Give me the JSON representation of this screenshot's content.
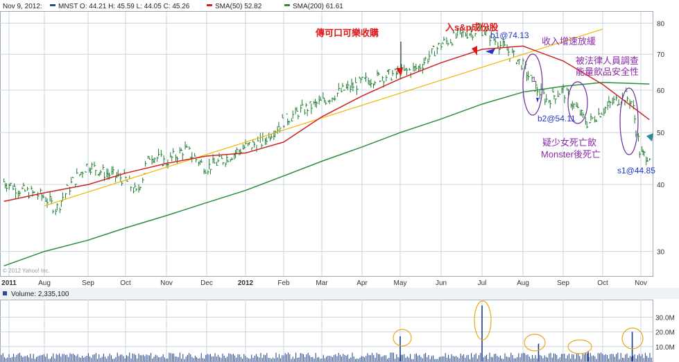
{
  "header": {
    "date": "Nov 9, 2012:",
    "ohlc": "MNST O: 44.21 H: 45.59 L: 44.05 C: 45.26",
    "sma50_label": "SMA(50) 52.82",
    "sma200_label": "SMA(200) 61.61"
  },
  "copyright": "© 2012 Yahoo! Inc.",
  "volume_label": "Volume: 2,335,100",
  "colors": {
    "price_bars": "#1a7a2c",
    "sma50": "#cc2222",
    "sma200": "#2e8b3c",
    "trendline": "#f0b400",
    "grid": "#c8d4e0",
    "annotation_red": "#e01818",
    "annotation_purple": "#8a2aa8",
    "annotation_blue": "#2233cc",
    "volume_bars": "#1a3a8a"
  },
  "chart_data": {
    "type": "line",
    "ticker": "MNST",
    "y_scale": "log",
    "ylim": [
      27,
      84
    ],
    "y_ticks": [
      30,
      40,
      50,
      60,
      70,
      80
    ],
    "x_tick_labels": [
      "2011",
      "Aug",
      "Sep",
      "Oct",
      "Nov",
      "Dec",
      "2012",
      "Feb",
      "Mar",
      "Apr",
      "May",
      "Jun",
      "Jul",
      "Aug",
      "Sep",
      "Oct",
      "Nov"
    ],
    "grid": true,
    "series": [
      {
        "name": "SMA(50)",
        "x": [
          "2011-07-01",
          "2011-08-01",
          "2011-09-01",
          "2011-10-01",
          "2011-11-01",
          "2011-12-01",
          "2012-01-01",
          "2012-02-01",
          "2012-03-01",
          "2012-04-01",
          "2012-05-01",
          "2012-06-01",
          "2012-07-01",
          "2012-08-01",
          "2012-09-01",
          "2012-10-01",
          "2012-11-09"
        ],
        "values": [
          37.2,
          38.6,
          40.0,
          42.0,
          43.8,
          45.2,
          45.8,
          48.0,
          53.5,
          58.5,
          63.0,
          67.5,
          71.5,
          72.5,
          68.0,
          61.5,
          52.82
        ]
      },
      {
        "name": "SMA(200)",
        "x": [
          "2011-07-01",
          "2011-08-01",
          "2011-09-01",
          "2011-10-01",
          "2011-11-01",
          "2011-12-01",
          "2012-01-01",
          "2012-02-01",
          "2012-03-01",
          "2012-04-01",
          "2012-05-01",
          "2012-06-01",
          "2012-07-01",
          "2012-08-01",
          "2012-09-01",
          "2012-10-01",
          "2012-11-09"
        ],
        "values": [
          28.2,
          30.0,
          31.5,
          33.2,
          35.0,
          37.0,
          39.0,
          41.5,
          44.2,
          47.0,
          50.0,
          53.0,
          56.5,
          59.5,
          61.0,
          62.0,
          61.61
        ]
      },
      {
        "name": "Trendline",
        "x": [
          "2011-08-01",
          "2012-10-01"
        ],
        "values": [
          36.5,
          78.0
        ]
      }
    ],
    "price": {
      "x": [
        "2011-07-01",
        "2011-07-15",
        "2011-08-01",
        "2011-08-10",
        "2011-08-20",
        "2011-09-01",
        "2011-09-15",
        "2011-10-01",
        "2011-10-10",
        "2011-10-20",
        "2011-11-01",
        "2011-11-15",
        "2011-12-01",
        "2011-12-15",
        "2012-01-01",
        "2012-01-15",
        "2012-02-01",
        "2012-02-15",
        "2012-03-01",
        "2012-03-15",
        "2012-04-01",
        "2012-04-15",
        "2012-05-01",
        "2012-05-15",
        "2012-06-01",
        "2012-06-15",
        "2012-07-01",
        "2012-07-15",
        "2012-08-01",
        "2012-08-10",
        "2012-08-20",
        "2012-09-01",
        "2012-09-10",
        "2012-09-20",
        "2012-10-01",
        "2012-10-10",
        "2012-10-20",
        "2012-10-25",
        "2012-11-01",
        "2012-11-09"
      ],
      "close": [
        40.5,
        39.0,
        38.0,
        36.0,
        40.0,
        43.5,
        42.0,
        41.0,
        38.5,
        45.5,
        44.0,
        46.5,
        43.0,
        44.5,
        47.0,
        48.0,
        52.5,
        55.0,
        57.0,
        59.5,
        62.0,
        63.5,
        64.5,
        66.0,
        73.0,
        76.0,
        78.0,
        73.0,
        67.0,
        61.0,
        57.5,
        60.0,
        56.0,
        52.0,
        55.0,
        57.0,
        58.5,
        57.0,
        45.5,
        45.26
      ]
    },
    "volume": {
      "unit": "M",
      "y_ticks": [
        10,
        20,
        30
      ],
      "y_tick_labels": [
        "10.0M",
        "20.0M",
        "30.0M"
      ],
      "spikes": [
        {
          "x": "2012-05-01",
          "value": 17
        },
        {
          "x": "2012-07-01",
          "value": 38
        },
        {
          "x": "2012-08-13",
          "value": 12
        },
        {
          "x": "2012-09-20",
          "value": 7
        },
        {
          "x": "2012-10-25",
          "value": 20
        }
      ]
    }
  },
  "annotations": {
    "coke_rumor": "傳可口可樂收購",
    "sp_join": "入s&p成份股",
    "b1": "b1@74.13",
    "income_slow": "收入增速放緩",
    "investigation_l1": "被法律人員調查",
    "investigation_l2": "能量飲品安全性",
    "b2": "b2@54.11",
    "death_l1": "疑少女死亡飲",
    "death_l2": "Monster後死亡",
    "s1": "s1@44.85",
    "marker_1": "1"
  }
}
